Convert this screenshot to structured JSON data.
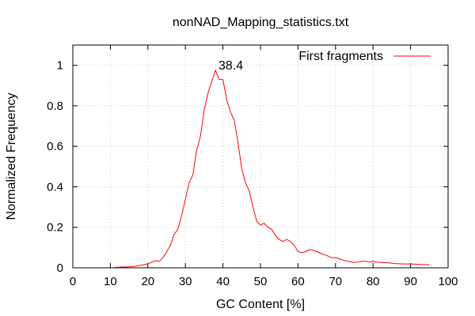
{
  "chart_data": {
    "type": "line",
    "title": "nonNAD_Mapping_statistics.txt",
    "xlabel": "GC Content [%]",
    "ylabel": "Normalized Frequency",
    "xlim": [
      0,
      100
    ],
    "ylim": [
      0,
      1.1
    ],
    "xticks": [
      0,
      10,
      20,
      30,
      40,
      50,
      60,
      70,
      80,
      90,
      100
    ],
    "yticks": [
      0,
      0.2,
      0.4,
      0.6,
      0.8,
      1
    ],
    "xtick_labels": [
      "0",
      "10",
      "20",
      "30",
      "40",
      "50",
      "60",
      "70",
      "80",
      "90",
      "100"
    ],
    "ytick_labels": [
      "0",
      "0.2",
      "0.4",
      "0.6",
      "0.8",
      "1"
    ],
    "grid": true,
    "legend_position": "top-right",
    "series": [
      {
        "name": "First fragments",
        "color": "#ff0000",
        "x": [
          11,
          12,
          13,
          14,
          15,
          16,
          17,
          18,
          19,
          20,
          21,
          22,
          23,
          24,
          25,
          26,
          27,
          28,
          29,
          30,
          31,
          32,
          33,
          34,
          35,
          36,
          37,
          38,
          39,
          40,
          41,
          42,
          43,
          44,
          45,
          46,
          47,
          48,
          49,
          50,
          51,
          52,
          53,
          54,
          55,
          56,
          57,
          58,
          59,
          60,
          61,
          62,
          63,
          64,
          65,
          66,
          67,
          68,
          69,
          70,
          71,
          72,
          73,
          74,
          75,
          76,
          77,
          78,
          79,
          80,
          81,
          82,
          83,
          84,
          85,
          86,
          87,
          88,
          89,
          90,
          91,
          92,
          93,
          94,
          95
        ],
        "y": [
          0.002,
          0.003,
          0.004,
          0.004,
          0.005,
          0.007,
          0.009,
          0.012,
          0.016,
          0.02,
          0.028,
          0.035,
          0.032,
          0.05,
          0.08,
          0.11,
          0.165,
          0.19,
          0.26,
          0.34,
          0.42,
          0.46,
          0.58,
          0.65,
          0.78,
          0.86,
          0.92,
          0.975,
          0.93,
          0.93,
          0.83,
          0.77,
          0.73,
          0.62,
          0.49,
          0.42,
          0.38,
          0.3,
          0.23,
          0.21,
          0.22,
          0.2,
          0.19,
          0.16,
          0.14,
          0.13,
          0.14,
          0.13,
          0.11,
          0.08,
          0.075,
          0.08,
          0.09,
          0.088,
          0.08,
          0.072,
          0.065,
          0.058,
          0.05,
          0.05,
          0.045,
          0.038,
          0.033,
          0.03,
          0.026,
          0.028,
          0.032,
          0.032,
          0.028,
          0.032,
          0.028,
          0.027,
          0.025,
          0.025,
          0.023,
          0.021,
          0.02,
          0.019,
          0.019,
          0.019,
          0.018,
          0.017,
          0.016,
          0.016,
          0.015
        ]
      }
    ],
    "annotations": [
      {
        "text": "38.4",
        "x": 38.4,
        "y": 0.975
      }
    ]
  }
}
